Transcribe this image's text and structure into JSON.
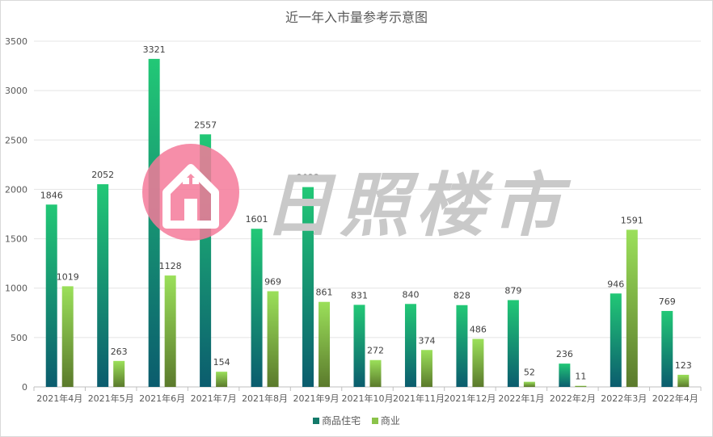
{
  "chart_data": {
    "type": "bar",
    "title": "近一年入市量参考示意图",
    "categories": [
      "2021年4月",
      "2021年5月",
      "2021年6月",
      "2021年7月",
      "2021年8月",
      "2021年9月",
      "2021年10月",
      "2021年11月",
      "2021年12月",
      "2022年1月",
      "2022年2月",
      "2022年3月",
      "2022年4月"
    ],
    "series": [
      {
        "name": "商品住宅",
        "values": [
          1846,
          2052,
          3321,
          2557,
          1601,
          2023,
          831,
          840,
          828,
          879,
          236,
          946,
          769
        ],
        "color_top": "#22c876",
        "color_bottom": "#0b5c6e"
      },
      {
        "name": "商业",
        "values": [
          1019,
          263,
          1128,
          154,
          969,
          861,
          272,
          374,
          486,
          52,
          11,
          1591,
          123
        ],
        "color_top": "#9be05a",
        "color_bottom": "#5b7a2c"
      }
    ],
    "yticks": [
      0,
      500,
      1000,
      1500,
      2000,
      2500,
      3000,
      3500
    ],
    "ylim": [
      0,
      3500
    ],
    "grid": true,
    "legend_position": "bottom"
  },
  "watermark": {
    "text": "日照楼市"
  }
}
